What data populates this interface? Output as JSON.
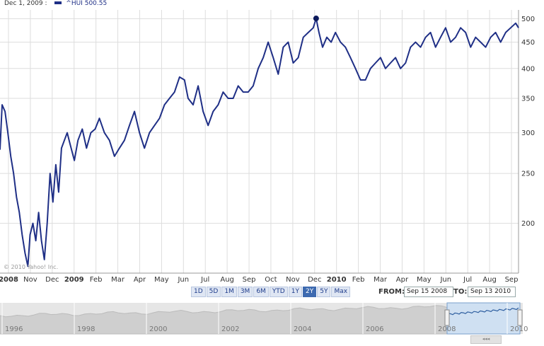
{
  "header": {
    "date": "Dec 1, 2009 :",
    "symbol": "^HUI",
    "value": "500.55"
  },
  "copyright": "© 2010 Yahoo! Inc.",
  "range_buttons": [
    "1D",
    "5D",
    "1M",
    "3M",
    "6M",
    "YTD",
    "1Y",
    "2Y",
    "5Y",
    "Max"
  ],
  "active_range": "2Y",
  "from_label": "FROM:",
  "from_date": "Sep 15 2008",
  "to_label": "TO:",
  "to_date": "Sep 13 2010",
  "navigator_years": [
    "1996",
    "1998",
    "2000",
    "2002",
    "2004",
    "2006",
    "2008",
    "2010"
  ],
  "scroll_grip_glyph": "◂◂◂",
  "colors": {
    "line": "#1f2f86",
    "grid": "#dddddd",
    "navigator_bg": "#e6e6e6",
    "navigator_selection": "#cfe0f2"
  },
  "chart_data": {
    "type": "line",
    "y_scale": "log",
    "ylim": [
      160,
      520
    ],
    "y_ticks": [
      200,
      250,
      300,
      350,
      400,
      450,
      500
    ],
    "x_labels": [
      "2008",
      "Nov",
      "Dec",
      "2009",
      "Feb",
      "Mar",
      "Apr",
      "May",
      "Jun",
      "Jul",
      "Aug",
      "Sep",
      "Oct",
      "Nov",
      "Dec",
      "2010",
      "Feb",
      "Mar",
      "Apr",
      "May",
      "Jun",
      "Jul",
      "Aug",
      "Sep"
    ],
    "marker": {
      "date": "2009-12-01",
      "value": 500.55
    },
    "series": [
      {
        "x": [
          "2008-09-15",
          "2008-09-18",
          "2008-09-22",
          "2008-09-26",
          "2008-09-30",
          "2008-10-04",
          "2008-10-08",
          "2008-10-12",
          "2008-10-16",
          "2008-10-20",
          "2008-10-24",
          "2008-10-27",
          "2008-10-31",
          "2008-11-04",
          "2008-11-08",
          "2008-11-12",
          "2008-11-16",
          "2008-11-20",
          "2008-11-24",
          "2008-11-28",
          "2008-12-02",
          "2008-12-06",
          "2008-12-10",
          "2008-12-14",
          "2008-12-18",
          "2008-12-22",
          "2008-12-28",
          "2009-01-02",
          "2009-01-08",
          "2009-01-14",
          "2009-01-20",
          "2009-01-26",
          "2009-02-01",
          "2009-02-08",
          "2009-02-15",
          "2009-02-22",
          "2009-03-01",
          "2009-03-08",
          "2009-03-15",
          "2009-03-22",
          "2009-03-29",
          "2009-04-05",
          "2009-04-12",
          "2009-04-19",
          "2009-04-26",
          "2009-05-03",
          "2009-05-10",
          "2009-05-17",
          "2009-05-24",
          "2009-05-31",
          "2009-06-05",
          "2009-06-12",
          "2009-06-19",
          "2009-06-26",
          "2009-07-03",
          "2009-07-10",
          "2009-07-17",
          "2009-07-24",
          "2009-07-31",
          "2009-08-07",
          "2009-08-14",
          "2009-08-21",
          "2009-08-28",
          "2009-09-04",
          "2009-09-11",
          "2009-09-18",
          "2009-09-25",
          "2009-10-02",
          "2009-10-09",
          "2009-10-16",
          "2009-10-23",
          "2009-10-30",
          "2009-11-06",
          "2009-11-13",
          "2009-11-20",
          "2009-11-27",
          "2009-12-01",
          "2009-12-05",
          "2009-12-10",
          "2009-12-16",
          "2009-12-22",
          "2009-12-28",
          "2010-01-04",
          "2010-01-11",
          "2010-01-18",
          "2010-01-25",
          "2010-02-01",
          "2010-02-08",
          "2010-02-15",
          "2010-02-22",
          "2010-03-01",
          "2010-03-08",
          "2010-03-15",
          "2010-03-22",
          "2010-03-29",
          "2010-04-05",
          "2010-04-12",
          "2010-04-19",
          "2010-04-26",
          "2010-05-03",
          "2010-05-10",
          "2010-05-17",
          "2010-05-24",
          "2010-05-31",
          "2010-06-07",
          "2010-06-14",
          "2010-06-21",
          "2010-06-28",
          "2010-07-05",
          "2010-07-12",
          "2010-07-19",
          "2010-07-26",
          "2010-08-02",
          "2010-08-09",
          "2010-08-16",
          "2010-08-23",
          "2010-08-30",
          "2010-09-06",
          "2010-09-10"
        ],
        "y": [
          278,
          340,
          330,
          300,
          270,
          250,
          225,
          210,
          190,
          175,
          165,
          190,
          200,
          185,
          210,
          185,
          170,
          200,
          250,
          220,
          260,
          230,
          280,
          290,
          300,
          285,
          265,
          290,
          305,
          280,
          300,
          305,
          320,
          300,
          290,
          270,
          280,
          290,
          310,
          330,
          300,
          280,
          300,
          310,
          320,
          340,
          350,
          360,
          385,
          380,
          350,
          340,
          370,
          330,
          310,
          330,
          340,
          360,
          350,
          350,
          370,
          360,
          360,
          370,
          400,
          420,
          450,
          420,
          390,
          440,
          450,
          410,
          420,
          460,
          470,
          480,
          500.55,
          470,
          440,
          460,
          450,
          470,
          450,
          440,
          420,
          400,
          380,
          380,
          400,
          410,
          420,
          400,
          410,
          420,
          400,
          410,
          440,
          450,
          440,
          460,
          470,
          440,
          460,
          480,
          450,
          460,
          480,
          470,
          440,
          460,
          450,
          440,
          460,
          470,
          450,
          470,
          480,
          490,
          480
        ]
      }
    ]
  }
}
